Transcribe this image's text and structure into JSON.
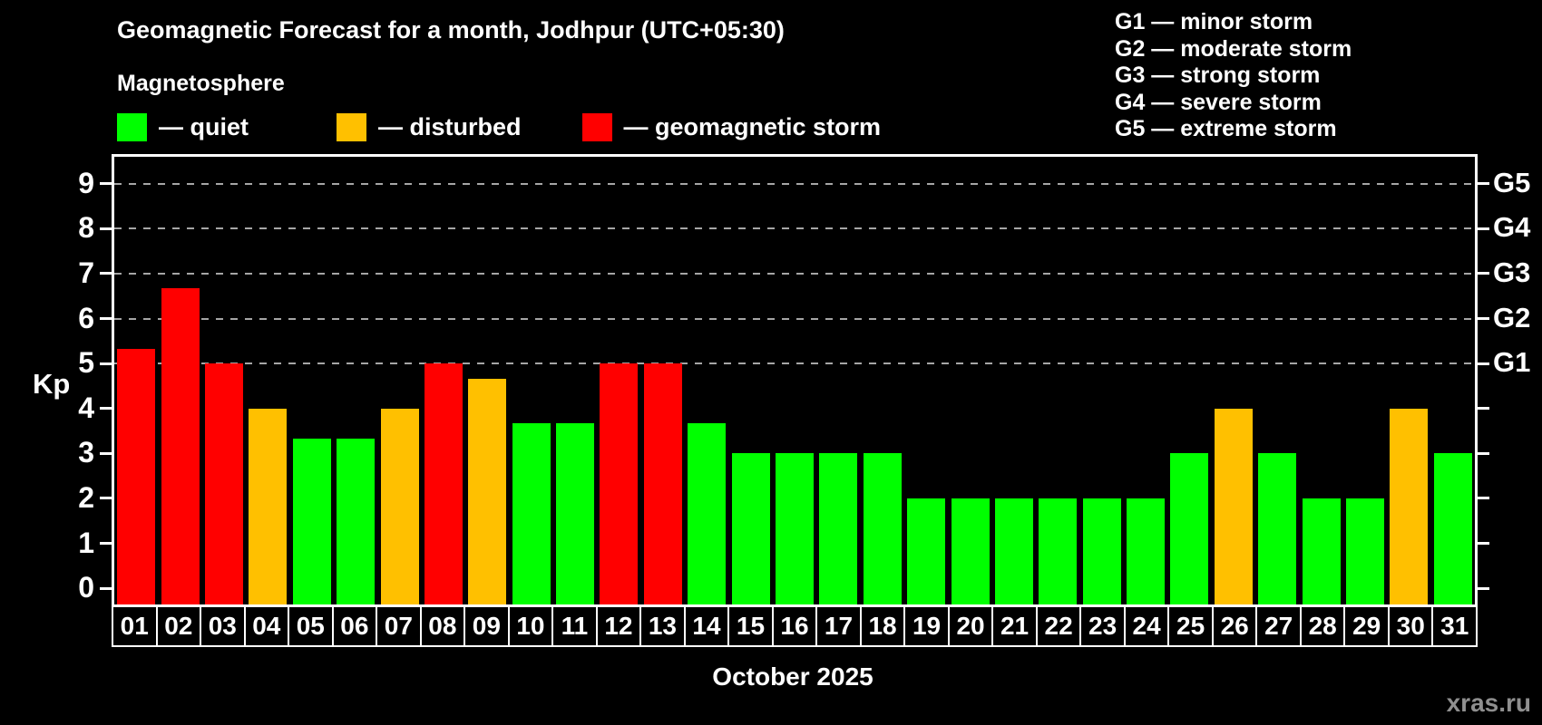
{
  "page": {
    "title": "Geomagnetic Forecast for a month, Jodhpur (UTC+05:30)",
    "subtitle": "Magnetosphere",
    "xlabel": "October 2025",
    "ylabel": "Kp",
    "watermark": "xras.ru",
    "background_color": "#000000"
  },
  "legend": {
    "items": [
      {
        "key": "quiet",
        "label": "— quiet",
        "color": "#00ff00"
      },
      {
        "key": "disturbed",
        "label": "— disturbed",
        "color": "#ffc000"
      },
      {
        "key": "storm",
        "label": "— geomagnetic storm",
        "color": "#ff0000"
      }
    ]
  },
  "storm_scale_legend": {
    "lines": [
      "G1 — minor storm",
      "G2 — moderate storm",
      "G3 — strong storm",
      "G4 — severe storm",
      "G5 — extreme storm"
    ]
  },
  "axes": {
    "y_ticks": [
      0,
      1,
      2,
      3,
      4,
      5,
      6,
      7,
      8,
      9
    ],
    "grid_kp": [
      5,
      6,
      7,
      8,
      9
    ],
    "right_labels": [
      {
        "label": "G1",
        "kp": 5
      },
      {
        "label": "G2",
        "kp": 6
      },
      {
        "label": "G3",
        "kp": 7
      },
      {
        "label": "G4",
        "kp": 8
      },
      {
        "label": "G5",
        "kp": 9
      }
    ],
    "grid_color": "#a6a6a6"
  },
  "chart_data": {
    "type": "bar",
    "title": "Geomagnetic Forecast for a month, Jodhpur (UTC+05:30)",
    "xlabel": "October 2025",
    "ylabel": "Kp",
    "ylim": [
      0,
      9.6
    ],
    "grid": true,
    "categories": [
      "01",
      "02",
      "03",
      "04",
      "05",
      "06",
      "07",
      "08",
      "09",
      "10",
      "11",
      "12",
      "13",
      "14",
      "15",
      "16",
      "17",
      "18",
      "19",
      "20",
      "21",
      "22",
      "23",
      "24",
      "25",
      "26",
      "27",
      "28",
      "29",
      "30",
      "31"
    ],
    "values": [
      5.33,
      6.67,
      5,
      4,
      3.33,
      3.33,
      4,
      5,
      4.67,
      3.67,
      3.67,
      5,
      5,
      3.67,
      3,
      3,
      3,
      3,
      2,
      2,
      2,
      2,
      2,
      2,
      3,
      4,
      3,
      2,
      2,
      4,
      3
    ],
    "levels": [
      "storm",
      "storm",
      "storm",
      "disturbed",
      "quiet",
      "quiet",
      "disturbed",
      "storm",
      "disturbed",
      "quiet",
      "quiet",
      "storm",
      "storm",
      "quiet",
      "quiet",
      "quiet",
      "quiet",
      "quiet",
      "quiet",
      "quiet",
      "quiet",
      "quiet",
      "quiet",
      "quiet",
      "quiet",
      "disturbed",
      "quiet",
      "quiet",
      "quiet",
      "disturbed",
      "quiet"
    ],
    "level_colors": {
      "quiet": "#00ff00",
      "disturbed": "#ffc000",
      "storm": "#ff0000"
    }
  }
}
